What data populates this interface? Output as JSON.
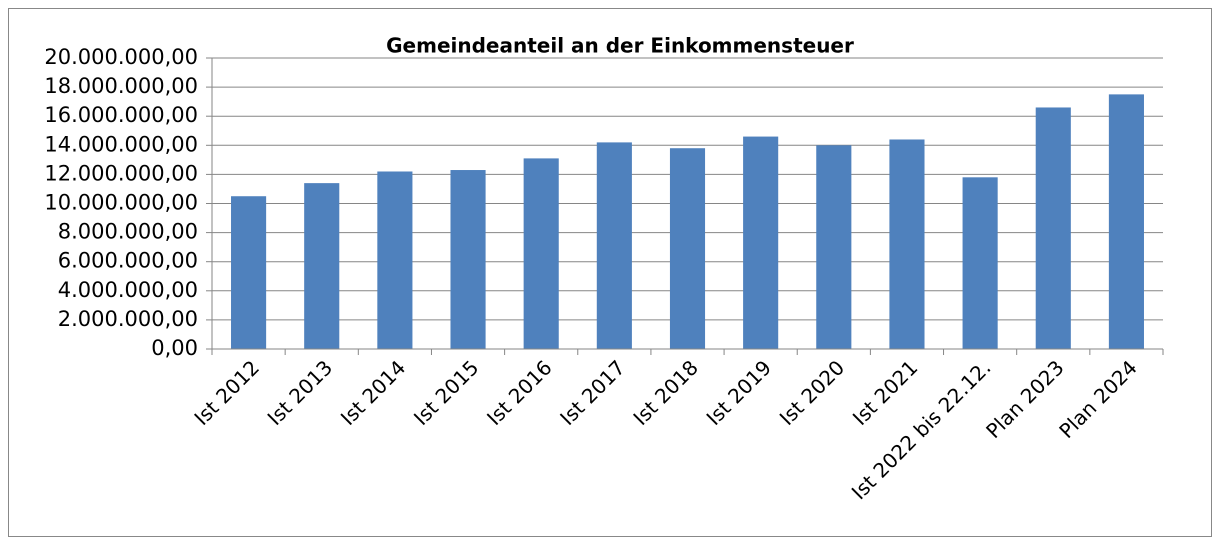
{
  "chart_data": {
    "type": "bar",
    "title": "Gemeindeanteil an der Einkommensteuer",
    "categories": [
      "Ist 2012",
      "Ist 2013",
      "Ist 2014",
      "Ist 2015",
      "Ist 2016",
      "Ist 2017",
      "Ist 2018",
      "Ist 2019",
      "Ist 2020",
      "Ist 2021",
      "Ist 2022 bis 22.12.",
      "Plan 2023",
      "Plan 2024"
    ],
    "values": [
      10500000,
      11400000,
      12200000,
      12300000,
      13100000,
      14200000,
      13800000,
      14600000,
      14000000,
      14400000,
      11800000,
      16600000,
      17500000
    ],
    "color": "#4f81bd",
    "ylim": [
      0,
      20000000
    ],
    "yticks": [
      {
        "value": 0,
        "label": "0,00"
      },
      {
        "value": 2000000,
        "label": "2.000.000,00"
      },
      {
        "value": 4000000,
        "label": "4.000.000,00"
      },
      {
        "value": 6000000,
        "label": "6.000.000,00"
      },
      {
        "value": 8000000,
        "label": "8.000.000,00"
      },
      {
        "value": 10000000,
        "label": "10.000.000,00"
      },
      {
        "value": 12000000,
        "label": "12.000.000,00"
      },
      {
        "value": 14000000,
        "label": "14.000.000,00"
      },
      {
        "value": 16000000,
        "label": "16.000.000,00"
      },
      {
        "value": 18000000,
        "label": "18.000.000,00"
      },
      {
        "value": 20000000,
        "label": "20.000.000,00"
      }
    ],
    "grid": true
  }
}
